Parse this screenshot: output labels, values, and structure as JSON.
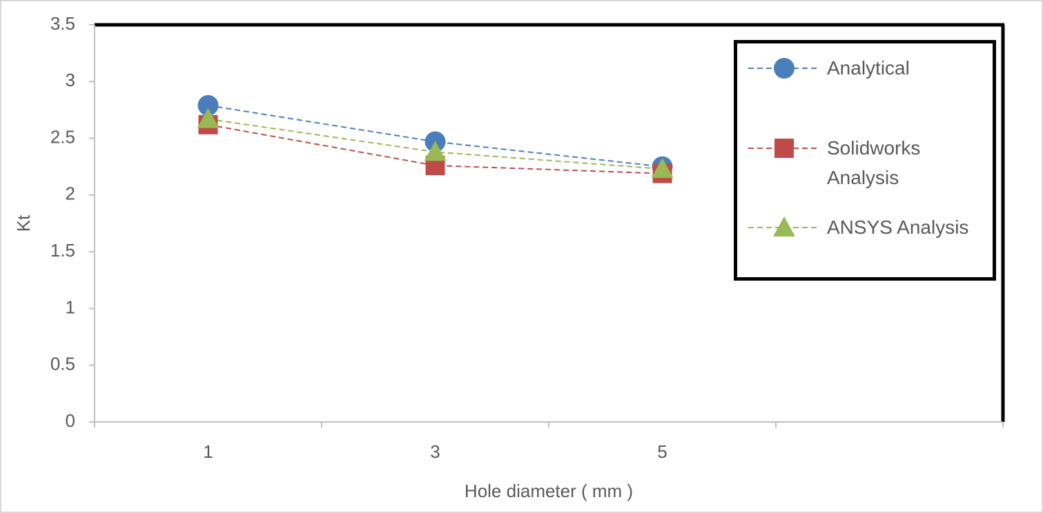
{
  "chart_data": {
    "type": "line",
    "x_label": "Hole diameter ( mm )",
    "y_label": "Kt",
    "categories": [
      "1",
      "3",
      "5",
      null
    ],
    "series": [
      {
        "name": "Analytical",
        "color": "#4a7ebb",
        "marker": "circle",
        "linestyle": "dashed",
        "values": [
          2.79,
          2.47,
          2.25,
          null
        ]
      },
      {
        "name": "Solidworks Analysis",
        "color": "#be4b48",
        "marker": "square",
        "linestyle": "dashed",
        "values": [
          2.62,
          2.26,
          2.19,
          null
        ]
      },
      {
        "name": "ANSYS Analysis",
        "color": "#98b954",
        "marker": "triangle",
        "linestyle": "dashed",
        "values": [
          2.67,
          2.38,
          2.23,
          null
        ]
      }
    ],
    "ylim": [
      0,
      3.5
    ],
    "yticks": [
      0,
      0.5,
      1,
      1.5,
      2,
      2.5,
      3,
      3.5
    ],
    "grid": false,
    "legend": "upper right"
  }
}
